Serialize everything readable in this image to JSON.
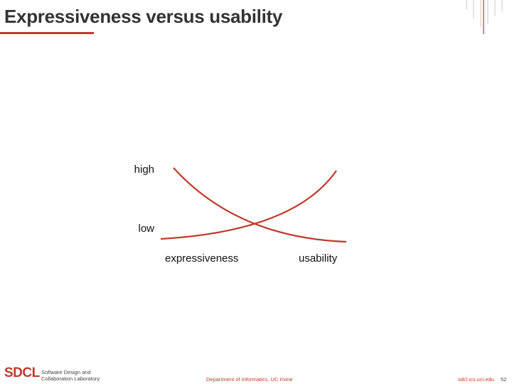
{
  "slide": {
    "title": "Expressiveness versus usability",
    "accent_color": "#c0392b"
  },
  "diagram": {
    "y_labels": {
      "high": "high",
      "low": "low"
    },
    "x_labels": {
      "left": "expressiveness",
      "right": "usability"
    },
    "curves": [
      {
        "name": "expressiveness",
        "shape": "high-to-low"
      },
      {
        "name": "usability",
        "shape": "low-to-high"
      }
    ]
  },
  "footer": {
    "logo": "SDCL",
    "lab_line1": "Software Design and",
    "lab_line2": "Collaboration Laboratory",
    "department": "Department of Informatics, UC Irvine",
    "url": "sdcl.ics.uci.edu",
    "page_number": "52"
  }
}
